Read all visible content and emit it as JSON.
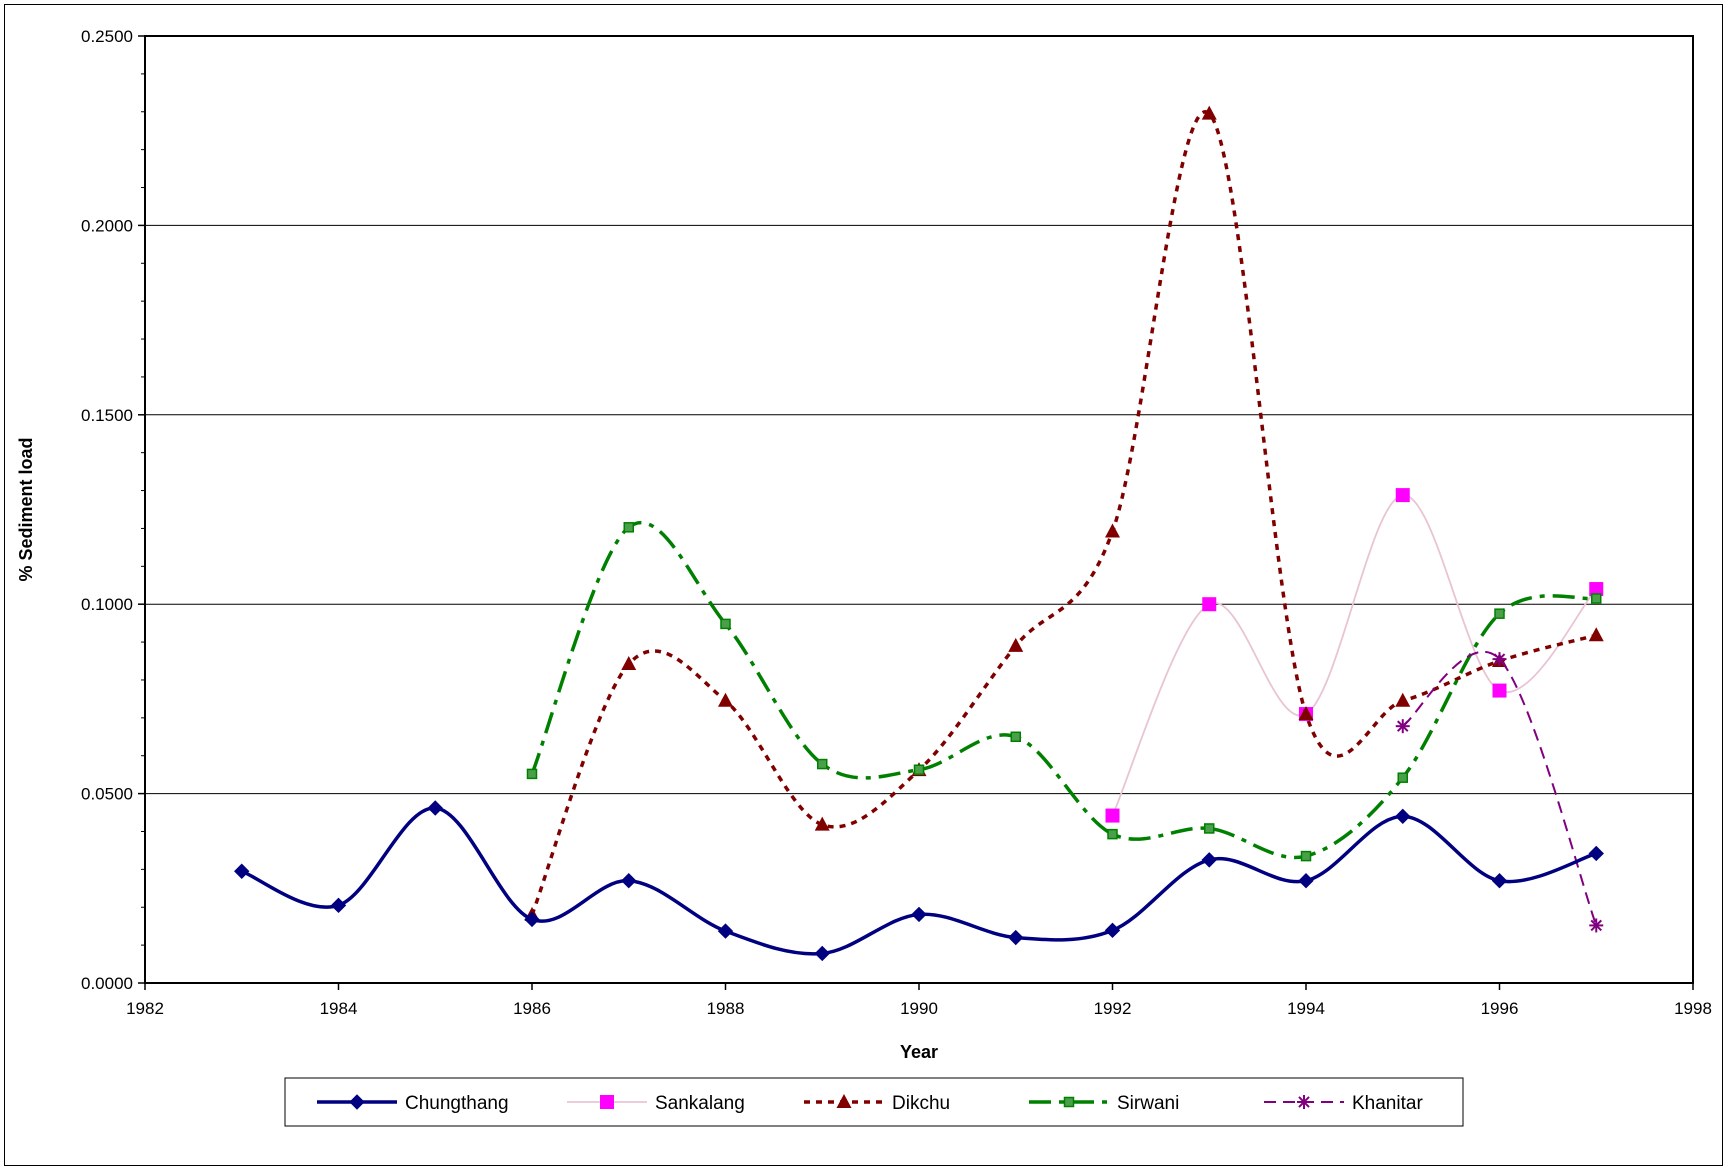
{
  "chart_data": {
    "type": "line",
    "title": "",
    "xlabel": "Year",
    "ylabel": "% Sediment load",
    "xlim": [
      1982,
      1998
    ],
    "ylim": [
      0,
      0.25
    ],
    "x_ticks": [
      "1982",
      "1984",
      "1986",
      "1988",
      "1990",
      "1992",
      "1994",
      "1996",
      "1998"
    ],
    "y_ticks": [
      "0.0000",
      "0.0500",
      "0.1000",
      "0.1500",
      "0.2000",
      "0.2500"
    ],
    "grid": "horizontal",
    "legend_position": "bottom",
    "series": [
      {
        "name": "Chungthang",
        "color": "#000080",
        "marker": "diamond",
        "line_style": "solid-thick",
        "x": [
          1983,
          1984,
          1985,
          1986,
          1987,
          1988,
          1989,
          1990,
          1991,
          1992,
          1993,
          1994,
          1995,
          1996,
          1997
        ],
        "y": [
          0.0295,
          0.0205,
          0.0462,
          0.0168,
          0.027,
          0.0137,
          0.0078,
          0.0181,
          0.012,
          0.0139,
          0.0325,
          0.027,
          0.044,
          0.027,
          0.0342
        ]
      },
      {
        "name": "Sankalang",
        "color": "#ff00ff",
        "line_color": "#e8c4d4",
        "marker": "square",
        "line_style": "solid-thin",
        "x": [
          1992,
          1993,
          1994,
          1995,
          1996,
          1997
        ],
        "y": [
          0.0442,
          0.1,
          0.071,
          0.1288,
          0.0772,
          0.104
        ]
      },
      {
        "name": "Dikchu",
        "color": "#800000",
        "marker": "triangle",
        "line_style": "dotted",
        "x": [
          1986,
          1987,
          1988,
          1989,
          1990,
          1991,
          1992,
          1993,
          1994,
          1995,
          1996,
          1997
        ],
        "y": [
          0.018,
          0.0842,
          0.0745,
          0.0418,
          0.0562,
          0.089,
          0.1192,
          0.2295,
          0.071,
          0.0745,
          0.085,
          0.0918
        ]
      },
      {
        "name": "Sirwani",
        "color": "#008000",
        "marker": "small-square",
        "line_style": "dash-dot",
        "x": [
          1986,
          1987,
          1988,
          1989,
          1990,
          1991,
          1992,
          1993,
          1994,
          1995,
          1996,
          1997
        ],
        "y": [
          0.0552,
          0.1203,
          0.0948,
          0.0578,
          0.0563,
          0.065,
          0.0393,
          0.0408,
          0.0335,
          0.0542,
          0.0975,
          0.1015
        ]
      },
      {
        "name": "Khanitar",
        "color": "#800080",
        "marker": "asterisk",
        "line_style": "dashed",
        "x": [
          1995,
          1996,
          1997
        ],
        "y": [
          0.0678,
          0.0855,
          0.0152
        ]
      }
    ]
  }
}
